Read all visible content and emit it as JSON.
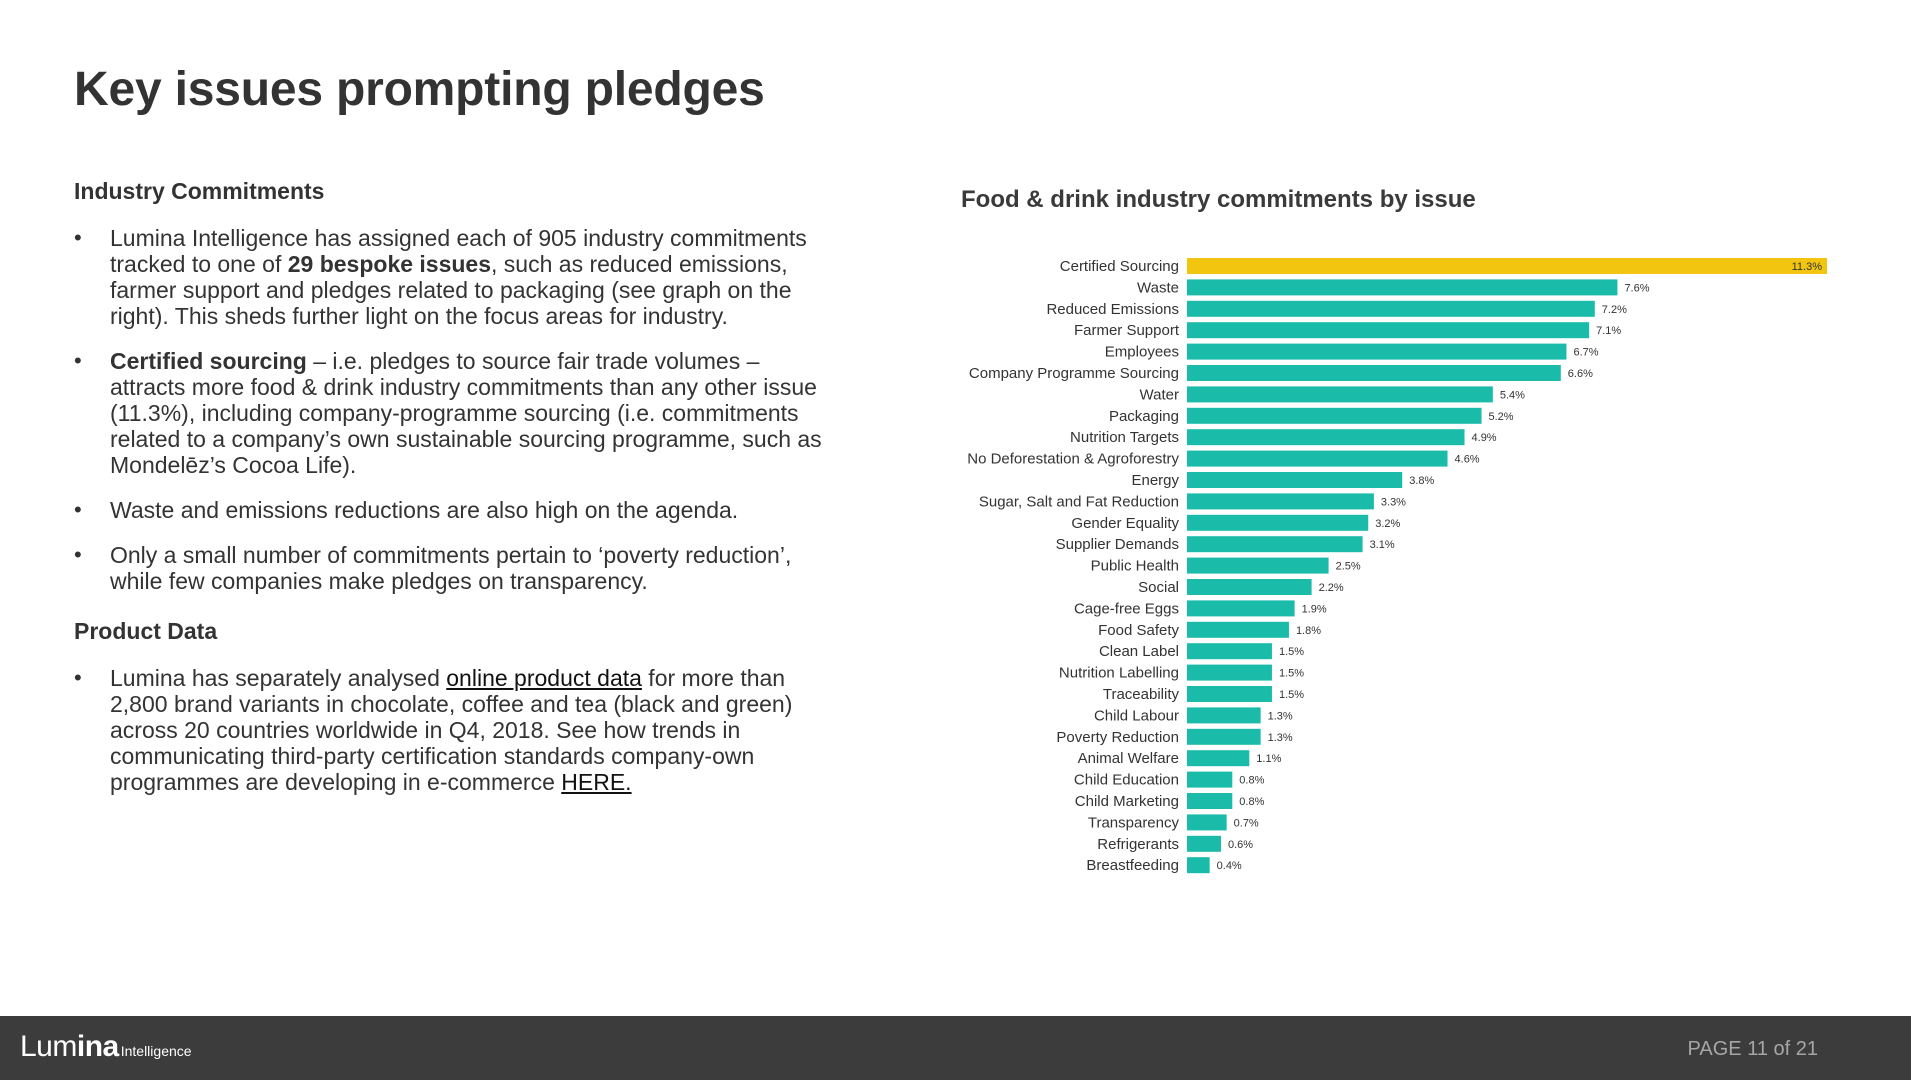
{
  "title": "Key issues prompting pledges",
  "industry": {
    "heading": "Industry Commitments",
    "b1": {
      "pre": "Lumina Intelligence has assigned each of 905 industry commitments tracked to one of ",
      "bold": "29 bespoke issues",
      "post": ", such as reduced emissions, farmer support and pledges related to packaging (see graph on the right). This sheds further light on the focus areas for industry."
    },
    "b2": {
      "bold": "Certified sourcing",
      "post": " – i.e. pledges to source fair trade volumes – attracts more food & drink industry commitments than any other issue (11.3%), including company-programme sourcing (i.e. commitments related to a company’s own sustainable sourcing programme, such as Mondelēz’s Cocoa Life)."
    },
    "b3": "Waste and emissions reductions are also high on the agenda.",
    "b4": "Only a small number of commitments pertain to ‘poverty reduction’, while few companies make pledges on transparency."
  },
  "product": {
    "heading": "Product Data",
    "b1": {
      "pre": "Lumina has separately analysed ",
      "link": "online product data",
      "mid": " for more than 2,800 brand variants in chocolate, coffee and tea (black and green) across 20 countries worldwide in Q4, 2018. See how trends in communicating third-party certification standards company-own programmes are developing in e-commerce ",
      "link2": "HERE."
    }
  },
  "chart_data": {
    "type": "bar",
    "orientation": "horizontal",
    "title": "Food & drink industry commitments by issue",
    "categories": [
      "Certified Sourcing",
      "Waste",
      "Reduced Emissions",
      "Farmer Support",
      "Employees",
      "Company Programme Sourcing",
      "Water",
      "Packaging",
      "Nutrition Targets",
      "No Deforestation & Agroforestry",
      "Energy",
      "Sugar, Salt and Fat Reduction",
      "Gender Equality",
      "Supplier Demands",
      "Public Health",
      "Social",
      "Cage-free Eggs",
      "Food Safety",
      "Clean Label",
      "Nutrition Labelling",
      "Traceability",
      "Child Labour",
      "Poverty Reduction",
      "Animal Welfare",
      "Child Education",
      "Child Marketing",
      "Transparency",
      "Refrigerants",
      "Breastfeeding"
    ],
    "values": [
      11.3,
      7.6,
      7.2,
      7.1,
      6.7,
      6.6,
      5.4,
      5.2,
      4.9,
      4.6,
      3.8,
      3.3,
      3.2,
      3.1,
      2.5,
      2.2,
      1.9,
      1.8,
      1.5,
      1.5,
      1.5,
      1.3,
      1.3,
      1.1,
      0.8,
      0.8,
      0.7,
      0.6,
      0.4
    ],
    "data_labels": [
      "11.3%",
      "7.6%",
      "7.2%",
      "7.1%",
      "6.7%",
      "6.6%",
      "5.4%",
      "5.2%",
      "4.9%",
      "4.6%",
      "3.8%",
      "3.3%",
      "3.2%",
      "3.1%",
      "2.5%",
      "2.2%",
      "1.9%",
      "1.8%",
      "1.5%",
      "1.5%",
      "1.5%",
      "1.3%",
      "1.3%",
      "1.1%",
      "0.8%",
      "0.8%",
      "0.7%",
      "0.6%",
      "0.4%"
    ],
    "xlim": [
      0,
      11.3
    ],
    "grid": false,
    "highlight_index": 0,
    "colors": {
      "highlight": "#F2C511",
      "bar": "#1ABCA9"
    }
  },
  "footer": {
    "logo_main_light": "Lum",
    "logo_main_bold": "ina",
    "logo_sub": "Intelligence",
    "page": "PAGE 11 of 21"
  }
}
